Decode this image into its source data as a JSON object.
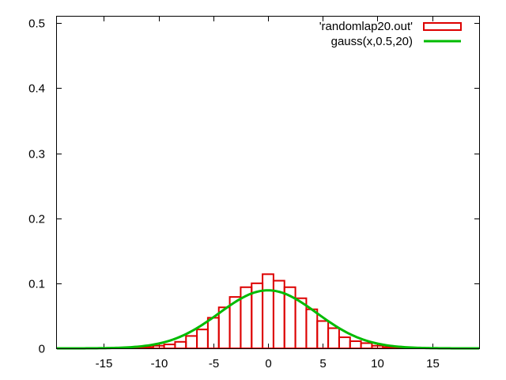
{
  "chart_data": {
    "type": "bar",
    "xlim": [
      -19.3,
      19.3
    ],
    "ylim": [
      0,
      0.51
    ],
    "x_ticks": [
      -15,
      -10,
      -5,
      0,
      5,
      10,
      15
    ],
    "y_ticks": [
      0,
      0.1,
      0.2,
      0.3,
      0.4,
      0.5
    ],
    "x_tick_labels": [
      "-15",
      "-10",
      "-5",
      "0",
      "5",
      "10",
      "15"
    ],
    "y_tick_labels": [
      "0",
      "0.1",
      "0.2",
      "0.3",
      "0.4",
      "0.5"
    ],
    "grid": false,
    "legend_position": "top-right",
    "series": [
      {
        "name": "'randomlap20.out'",
        "type": "histogram",
        "color": "#dd0000",
        "bin_width": 1,
        "bins": [
          {
            "x": -14,
            "y": 0.0005
          },
          {
            "x": -13,
            "y": 0.0008
          },
          {
            "x": -12,
            "y": 0.0012
          },
          {
            "x": -11,
            "y": 0.002
          },
          {
            "x": -10,
            "y": 0.004
          },
          {
            "x": -9,
            "y": 0.006
          },
          {
            "x": -8,
            "y": 0.01
          },
          {
            "x": -7,
            "y": 0.019
          },
          {
            "x": -6,
            "y": 0.029
          },
          {
            "x": -5,
            "y": 0.047
          },
          {
            "x": -4,
            "y": 0.063
          },
          {
            "x": -3,
            "y": 0.079
          },
          {
            "x": -2,
            "y": 0.094
          },
          {
            "x": -1,
            "y": 0.1
          },
          {
            "x": 0,
            "y": 0.114
          },
          {
            "x": 1,
            "y": 0.104
          },
          {
            "x": 2,
            "y": 0.094
          },
          {
            "x": 3,
            "y": 0.077
          },
          {
            "x": 4,
            "y": 0.06
          },
          {
            "x": 5,
            "y": 0.042
          },
          {
            "x": 6,
            "y": 0.031
          },
          {
            "x": 7,
            "y": 0.017
          },
          {
            "x": 8,
            "y": 0.011
          },
          {
            "x": 9,
            "y": 0.008
          },
          {
            "x": 10,
            "y": 0.004
          },
          {
            "x": 11,
            "y": 0.002
          },
          {
            "x": 12,
            "y": 0.001
          },
          {
            "x": 13,
            "y": 0.0006
          }
        ]
      },
      {
        "name": "gauss(x,0.5,20)",
        "type": "line",
        "color": "#00bb00",
        "mean": 0,
        "variance": 20
      }
    ]
  }
}
